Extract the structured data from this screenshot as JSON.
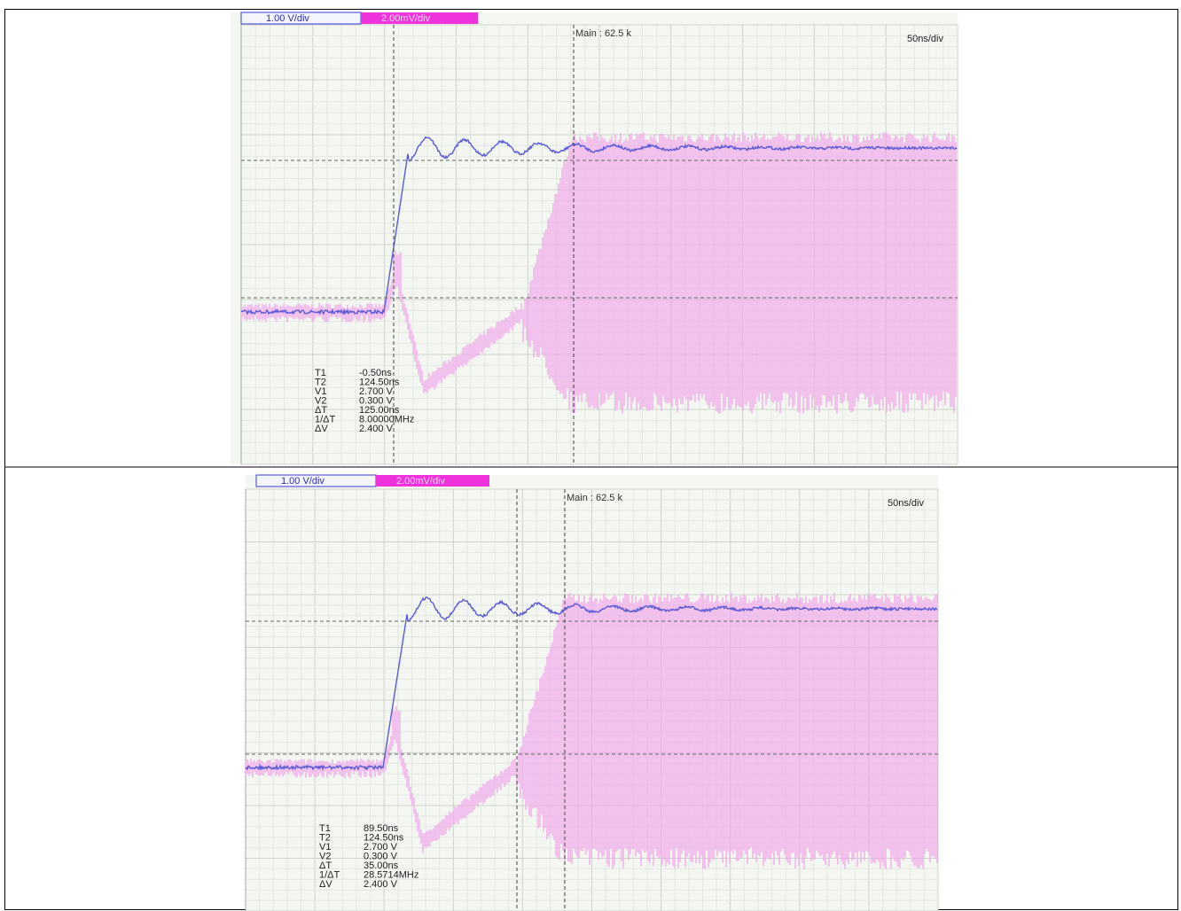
{
  "panels": [
    {
      "channel_1": "1.00 V/div",
      "channel_2": "2.00mV/div",
      "main": "Main : 62.5 k",
      "timebase": "50ns/div",
      "measurements": [
        {
          "label": "T1",
          "value": "-0.50ns"
        },
        {
          "label": "T2",
          "value": "124.50ns"
        },
        {
          "label": "V1",
          "value": "2.700 V"
        },
        {
          "label": "V2",
          "value": "0.300 V"
        },
        {
          "label": "ΔT",
          "value": "125.00ns"
        },
        {
          "label": "1/ΔT",
          "value": "8.00000MHz"
        },
        {
          "label": "ΔV",
          "value": "2.400 V"
        }
      ]
    },
    {
      "channel_1": "1.00 V/div",
      "channel_2": "2.00mV/div",
      "main": "Main : 62.5 k",
      "timebase": "50ns/div",
      "measurements": [
        {
          "label": "T1",
          "value": "89.50ns"
        },
        {
          "label": "T2",
          "value": "124.50ns"
        },
        {
          "label": "V1",
          "value": "2.700 V"
        },
        {
          "label": "V2",
          "value": "0.300 V"
        },
        {
          "label": "ΔT",
          "value": "35.00ns"
        },
        {
          "label": "1/ΔT",
          "value": "28.5714MHz"
        },
        {
          "label": "ΔV",
          "value": "2.400 V"
        }
      ]
    }
  ]
}
